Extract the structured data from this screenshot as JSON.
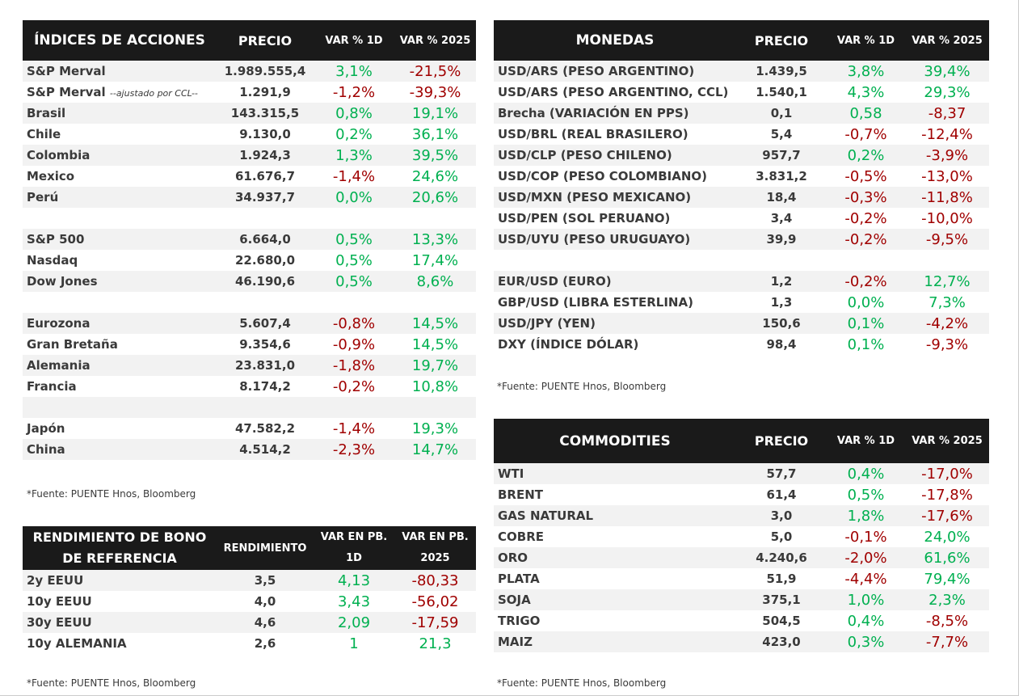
{
  "indices": {
    "headers": [
      "ÍNDICES DE ACCIONES",
      "PRECIO",
      "VAR % 1D",
      "VAR % 2025"
    ],
    "rows": [
      {
        "name": "S&P Merval",
        "price": "1.989.555,4",
        "d1": "3,1%",
        "ytd": "-21,5%"
      },
      {
        "name": "S&P Merval",
        "note": "--ajustado por CCL--",
        "price": "1.291,9",
        "d1": "-1,2%",
        "ytd": "-39,3%"
      },
      {
        "name": "Brasil",
        "price": "143.315,5",
        "d1": "0,8%",
        "ytd": "19,1%"
      },
      {
        "name": "Chile",
        "price": "9.130,0",
        "d1": "0,2%",
        "ytd": "36,1%"
      },
      {
        "name": "Colombia",
        "price": "1.924,3",
        "d1": "1,3%",
        "ytd": "39,5%"
      },
      {
        "name": "Mexico",
        "price": "61.676,7",
        "d1": "-1,4%",
        "ytd": "24,6%"
      },
      {
        "name": "Perú",
        "price": "34.937,7",
        "d1": "0,0%",
        "ytd": "20,6%"
      },
      null,
      {
        "name": "S&P 500",
        "price": "6.664,0",
        "d1": "0,5%",
        "ytd": "13,3%"
      },
      {
        "name": "Nasdaq",
        "price": "22.680,0",
        "d1": "0,5%",
        "ytd": "17,4%"
      },
      {
        "name": "Dow Jones",
        "price": "46.190,6",
        "d1": "0,5%",
        "ytd": "8,6%"
      },
      null,
      {
        "name": "Eurozona",
        "price": "5.607,4",
        "d1": "-0,8%",
        "ytd": "14,5%"
      },
      {
        "name": "Gran Bretaña",
        "price": "9.354,6",
        "d1": "-0,9%",
        "ytd": "14,5%"
      },
      {
        "name": "Alemania",
        "price": "23.831,0",
        "d1": "-1,8%",
        "ytd": "19,7%"
      },
      {
        "name": "Francia",
        "price": "8.174,2",
        "d1": "-0,2%",
        "ytd": "10,8%"
      },
      null,
      {
        "name": "Japón",
        "price": "47.582,2",
        "d1": "-1,4%",
        "ytd": "19,3%"
      },
      {
        "name": "China",
        "price": "4.514,2",
        "d1": "-2,3%",
        "ytd": "14,7%"
      }
    ],
    "source": "*Fuente: PUENTE Hnos, Bloomberg"
  },
  "bonds": {
    "headers": [
      "RENDIMIENTO DE BONO DE REFERENCIA",
      "RENDIMIENTO",
      "VAR EN PB. 1D",
      "VAR EN PB. 2025"
    ],
    "rows": [
      {
        "name": "2y EEUU",
        "price": "3,5",
        "d1": "4,13",
        "ytd": "-80,33"
      },
      {
        "name": "10y EEUU",
        "price": "4,0",
        "d1": "3,43",
        "ytd": "-56,02"
      },
      {
        "name": "30y EEUU",
        "price": "4,6",
        "d1": "2,09",
        "ytd": "-17,59"
      },
      {
        "name": "10y ALEMANIA",
        "price": "2,6",
        "d1": "1",
        "ytd": "21,3"
      }
    ],
    "source": "*Fuente: PUENTE Hnos, Bloomberg"
  },
  "currencies": {
    "headers": [
      "MONEDAS",
      "PRECIO",
      "VAR % 1D",
      "VAR % 2025"
    ],
    "rows": [
      {
        "name": "USD/ARS (PESO ARGENTINO)",
        "price": "1.439,5",
        "d1": "3,8%",
        "ytd": "39,4%",
        "c1": "pos",
        "c2": "pos"
      },
      {
        "name": "USD/ARS (PESO ARGENTINO, CCL)",
        "price": "1.540,1",
        "d1": "4,3%",
        "ytd": "29,3%",
        "c1": "pos",
        "c2": "pos"
      },
      {
        "name": "Brecha (VARIACIÓN EN PPS)",
        "price": "0,1",
        "d1": "0,58",
        "ytd": "-8,37",
        "c1": "pos",
        "c2": "neg"
      },
      {
        "name": "USD/BRL (REAL BRASILERO)",
        "price": "5,4",
        "d1": "-0,7%",
        "ytd": "-12,4%"
      },
      {
        "name": "USD/CLP (PESO CHILENO)",
        "price": "957,7",
        "d1": "0,2%",
        "ytd": "-3,9%"
      },
      {
        "name": "USD/COP (PESO COLOMBIANO)",
        "price": "3.831,2",
        "d1": "-0,5%",
        "ytd": "-13,0%"
      },
      {
        "name": "USD/MXN (PESO MEXICANO)",
        "price": "18,4",
        "d1": "-0,3%",
        "ytd": "-11,8%"
      },
      {
        "name": "USD/PEN (SOL PERUANO)",
        "price": "3,4",
        "d1": "-0,2%",
        "ytd": "-10,0%"
      },
      {
        "name": "USD/UYU (PESO URUGUAYO)",
        "price": "39,9",
        "d1": "-0,2%",
        "ytd": "-9,5%"
      },
      null,
      {
        "name": "EUR/USD (EURO)",
        "price": "1,2",
        "d1": "-0,2%",
        "ytd": "12,7%"
      },
      {
        "name": "GBP/USD (LIBRA ESTERLINA)",
        "price": "1,3",
        "d1": "0,0%",
        "ytd": "7,3%"
      },
      {
        "name": "USD/JPY (YEN)",
        "price": "150,6",
        "d1": "0,1%",
        "ytd": "-4,2%"
      },
      {
        "name": "DXY (ÍNDICE DÓLAR)",
        "price": "98,4",
        "d1": "0,1%",
        "ytd": "-9,3%"
      }
    ],
    "source": "*Fuente: PUENTE Hnos, Bloomberg"
  },
  "commodities": {
    "headers": [
      "COMMODITIES",
      "PRECIO",
      "VAR % 1D",
      "VAR % 2025"
    ],
    "rows": [
      {
        "name": "WTI",
        "price": "57,7",
        "d1": "0,4%",
        "ytd": "-17,0%"
      },
      {
        "name": "BRENT",
        "price": "61,4",
        "d1": "0,5%",
        "ytd": "-17,8%"
      },
      {
        "name": "GAS NATURAL",
        "price": "3,0",
        "d1": "1,8%",
        "ytd": "-17,6%"
      },
      {
        "name": "COBRE",
        "price": "5,0",
        "d1": "-0,1%",
        "ytd": "24,0%"
      },
      {
        "name": "ORO",
        "price": "4.240,6",
        "d1": "-2,0%",
        "ytd": "61,6%"
      },
      {
        "name": "PLATA",
        "price": "51,9",
        "d1": "-4,4%",
        "ytd": "79,4%"
      },
      {
        "name": "SOJA",
        "price": "375,1",
        "d1": "1,0%",
        "ytd": "2,3%"
      },
      {
        "name": "TRIGO",
        "price": "504,5",
        "d1": "0,4%",
        "ytd": "-8,5%"
      },
      {
        "name": "MAIZ",
        "price": "423,0",
        "d1": "0,3%",
        "ytd": "-7,7%"
      }
    ],
    "source": "*Fuente: PUENTE Hnos, Bloomberg"
  },
  "colors": {
    "header_bg": "#1a1a1a",
    "positive": "#00b050",
    "negative": "#a00000",
    "stripe": "#f2f2f2"
  }
}
